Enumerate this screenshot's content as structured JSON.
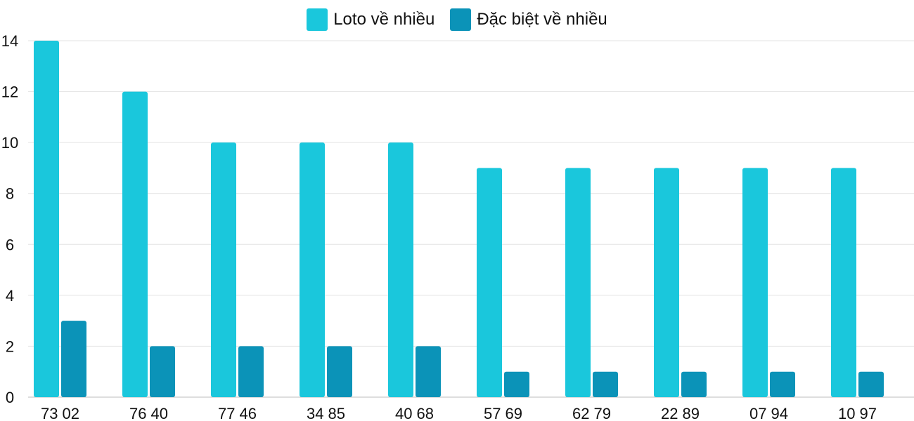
{
  "chart_data": {
    "type": "bar",
    "categories": [
      "73 02",
      "76 40",
      "77 46",
      "34 85",
      "40 68",
      "57 69",
      "62 79",
      "22 89",
      "07 94",
      "10 97"
    ],
    "series": [
      {
        "name": "Loto về nhiều",
        "color": "#1ac7dc",
        "values": [
          14,
          12,
          10,
          10,
          10,
          9,
          9,
          9,
          9,
          9
        ]
      },
      {
        "name": "Đặc biệt về nhiều",
        "color": "#0b93b8",
        "values": [
          3,
          2,
          2,
          2,
          2,
          1,
          1,
          1,
          1,
          1
        ]
      }
    ],
    "ylim": [
      0,
      14
    ],
    "yticks": [
      "0",
      "2",
      "4",
      "6",
      "8",
      "10",
      "12",
      "14"
    ],
    "grid": true,
    "legend": "top-center"
  }
}
